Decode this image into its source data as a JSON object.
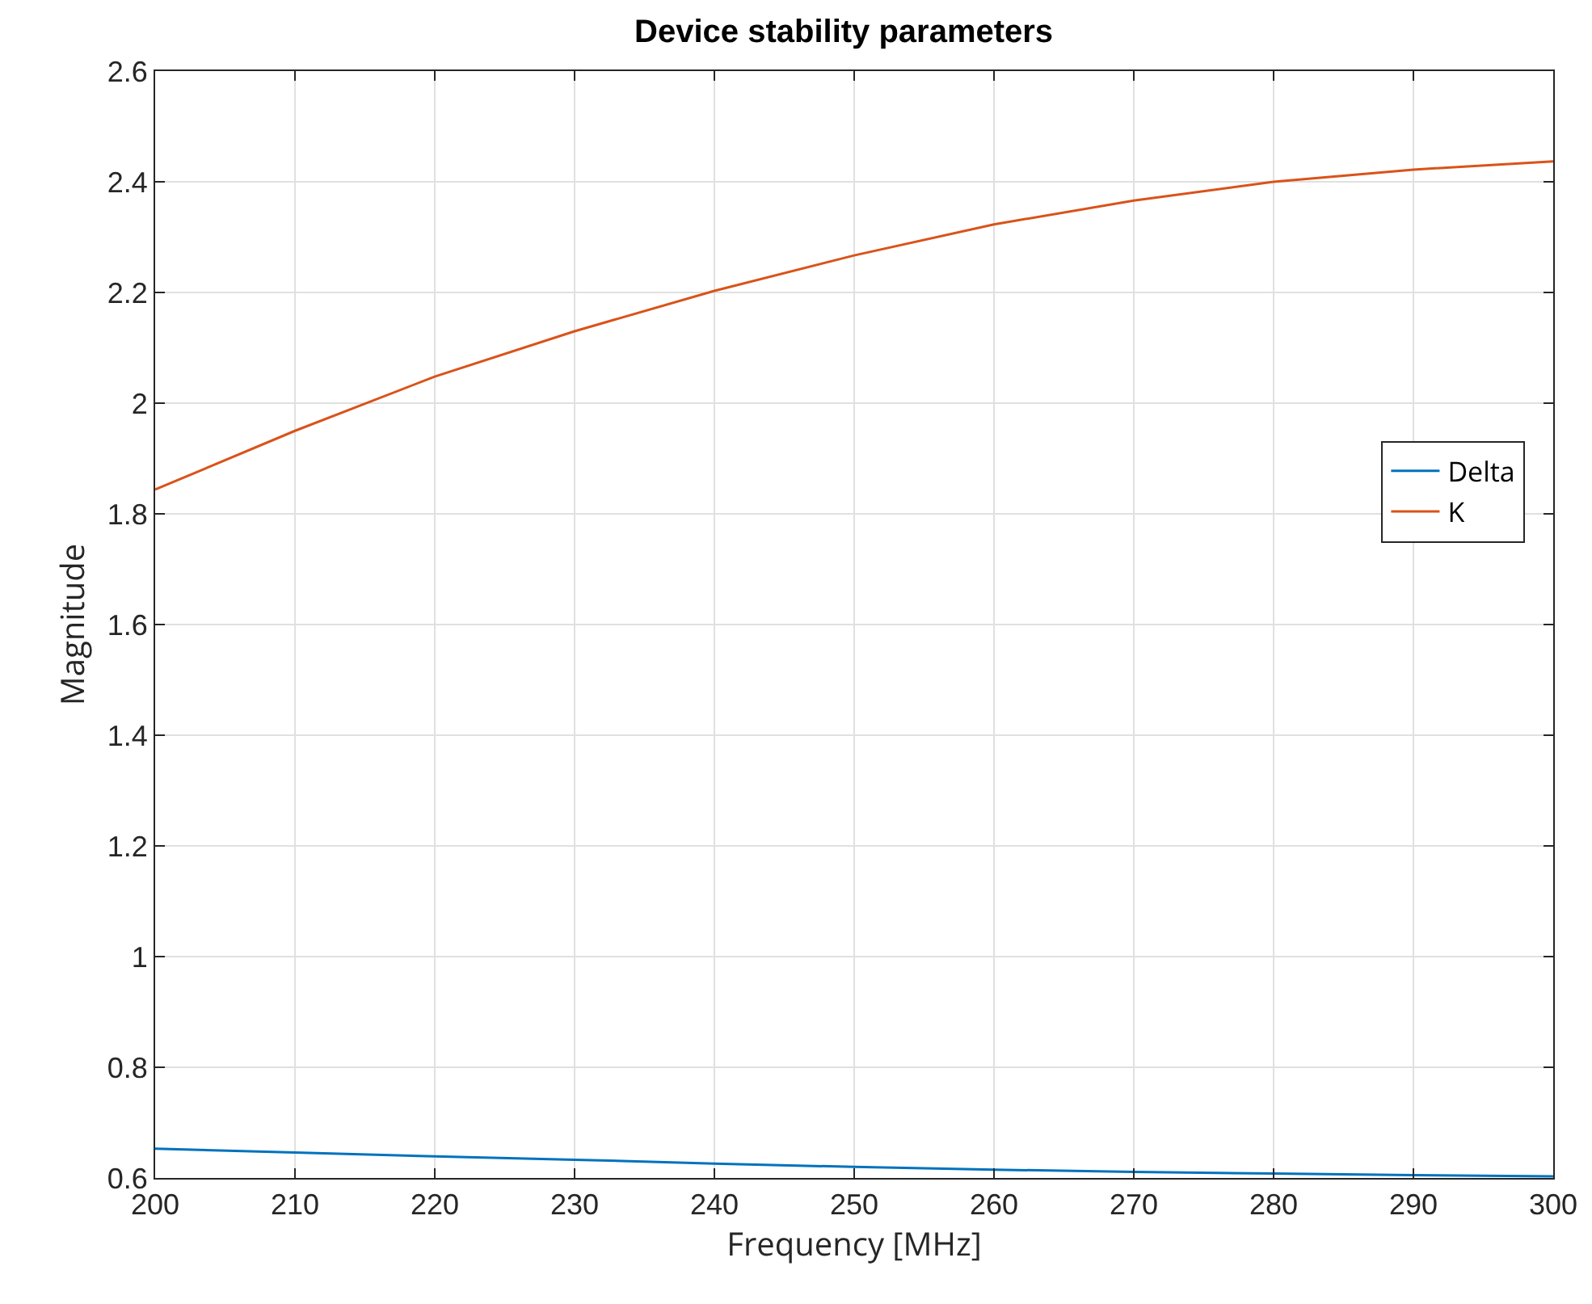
{
  "chart_data": {
    "type": "line",
    "title": "Device stability parameters",
    "xlabel": "Frequency [MHz]",
    "ylabel": "Magnitude",
    "x": [
      200,
      210,
      220,
      230,
      240,
      250,
      260,
      270,
      280,
      290,
      300
    ],
    "series": [
      {
        "name": "Delta",
        "color": "#0072bd",
        "values": [
          0.653,
          0.646,
          0.639,
          0.633,
          0.626,
          0.62,
          0.615,
          0.611,
          0.608,
          0.605,
          0.603
        ]
      },
      {
        "name": "K",
        "color": "#d95319",
        "values": [
          1.844,
          1.95,
          2.048,
          2.13,
          2.203,
          2.267,
          2.323,
          2.366,
          2.4,
          2.422,
          2.437
        ]
      }
    ],
    "xlim": [
      200,
      300
    ],
    "xticks": [
      200,
      210,
      220,
      230,
      240,
      250,
      260,
      270,
      280,
      290,
      300
    ],
    "ylim": [
      0.6,
      2.6
    ],
    "yticks": [
      0.6,
      0.8,
      1,
      1.2,
      1.4,
      1.6,
      1.8,
      2,
      2.2,
      2.4,
      2.6
    ],
    "grid": true,
    "legend": "right",
    "marker": "none",
    "line_style": "solid"
  }
}
